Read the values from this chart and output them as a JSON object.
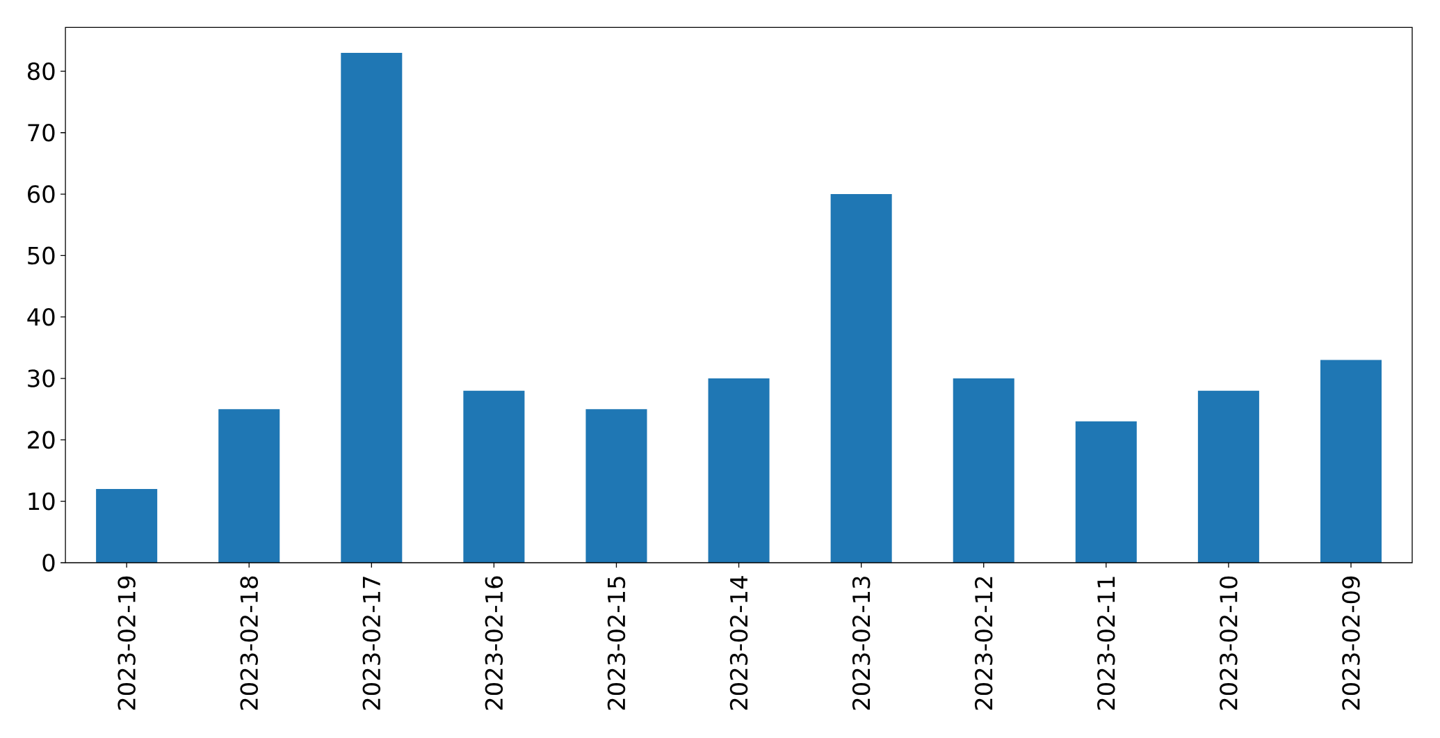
{
  "chart_data": {
    "type": "bar",
    "categories": [
      "2023-02-19",
      "2023-02-18",
      "2023-02-17",
      "2023-02-16",
      "2023-02-15",
      "2023-02-14",
      "2023-02-13",
      "2023-02-12",
      "2023-02-11",
      "2023-02-10",
      "2023-02-09"
    ],
    "values": [
      12,
      25,
      83,
      28,
      25,
      30,
      60,
      30,
      23,
      28,
      33
    ],
    "color": "#1f77b4",
    "ylim": [
      0,
      87.15
    ],
    "yticks": [
      0,
      10,
      20,
      30,
      40,
      50,
      60,
      70,
      80
    ]
  }
}
